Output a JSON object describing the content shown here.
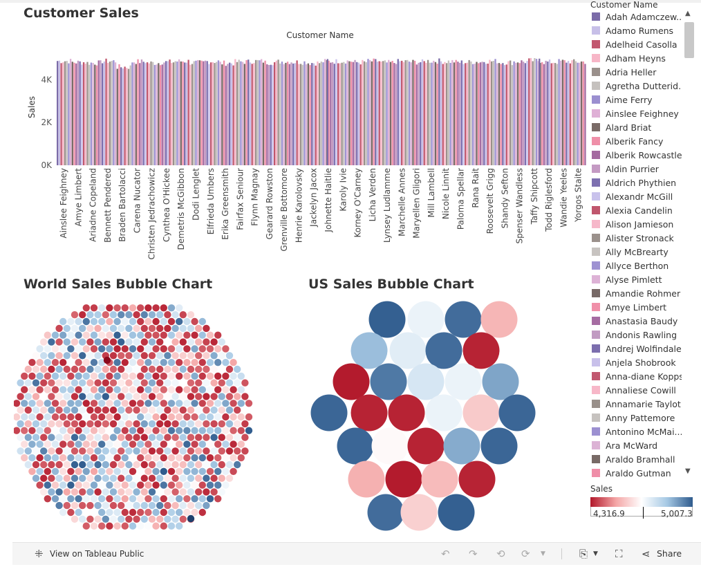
{
  "customer_sales": {
    "title": "Customer Sales",
    "header_label": "Customer Name",
    "y_axis_label": "Sales",
    "y_ticks": [
      "0K",
      "2K",
      "4K"
    ],
    "x_labels": [
      "Ainslee Feighney",
      "Amye Limbert",
      "Ariadne Copeland",
      "Bennett Pendered",
      "Braden Bartolacci",
      "Carena Nucator",
      "Christen Jedrachowicz",
      "Cynthea O'Hickee",
      "Demetris McGibbon",
      "Dodi Lenglet",
      "Elfrieda Umbers",
      "Erika Greensmith",
      "Fairfax Seniour",
      "Flynn Magnay",
      "Gearard Rowston",
      "Grenville Bottomore",
      "Henrie Karolovsky",
      "Jackelyn Jacox",
      "Johnette Haitlie",
      "Karoly Ivie",
      "Korney O'Carney",
      "Licha Verden",
      "Lynsey Ludlamme",
      "Marchelle Annes",
      "Maryellen Gligori",
      "Mill Lambell",
      "Nicole Linnit",
      "Paloma Spellar",
      "Rana Rait",
      "Roosevelt Grigg",
      "Shandy Sefton",
      "Spenser Wandless",
      "Taffy Shipcott",
      "Todd Riglesford",
      "Wandie Yeeles",
      "Yorgos Staite"
    ]
  },
  "world_chart": {
    "title": "World Sales Bubble Chart"
  },
  "us_chart": {
    "title": "US Sales Bubble Chart"
  },
  "chart_data": [
    {
      "type": "bar",
      "title": "Customer Sales",
      "xlabel": "Customer Name",
      "ylabel": "Sales",
      "ylim": [
        0,
        5500
      ],
      "note_values": "one bar per customer; all approx. 4,317–5,007",
      "categories": [
        "Ainslee Feighney",
        "Amye Limbert",
        "Ariadne Copeland",
        "Bennett Pendered",
        "Braden Bartolacci",
        "Carena Nucator",
        "Christen Jedrachowicz",
        "Cynthea O'Hickee",
        "Demetris McGibbon",
        "Dodi Lenglet",
        "Elfrieda Umbers",
        "Erika Greensmith",
        "Fairfax Seniour",
        "Flynn Magnay",
        "Gearard Rowston",
        "Grenville Bottomore",
        "Henrie Karolovsky",
        "Jackelyn Jacox",
        "Johnette Haitlie",
        "Karoly Ivie",
        "Korney O'Carney",
        "Licha Verden",
        "Lynsey Ludlamme",
        "Marchelle Annes",
        "Maryellen Gligori",
        "Mill Lambell",
        "Nicole Linnit",
        "Paloma Spellar",
        "Rana Rait",
        "Roosevelt Grigg",
        "Shandy Sefton",
        "Spenser Wandless",
        "Taffy Shipcott",
        "Todd Riglesford",
        "Wandie Yeeles",
        "Yorgos Staite"
      ],
      "values": [
        4880,
        4820,
        4790,
        4870,
        4600,
        4850,
        4790,
        4830,
        4870,
        4800,
        4860,
        4780,
        4840,
        4870,
        4810,
        4850,
        4830,
        4790,
        4860,
        4880,
        4820,
        4870,
        4800,
        4850,
        4830,
        4880,
        4860,
        4820,
        4840,
        4870,
        4810,
        4850,
        4900,
        4830,
        4860,
        4840
      ]
    },
    {
      "type": "scatter",
      "title": "World Sales Bubble Chart",
      "color_scale": [
        "#b2182b",
        "#f4a6a6",
        "#ffffff",
        "#a5c8e4",
        "#2f5b8d"
      ]
    },
    {
      "type": "scatter",
      "title": "US Sales Bubble Chart",
      "values": [
        5000,
        4700,
        4980,
        4520,
        4850,
        4720,
        4980,
        4330,
        4320,
        4960,
        4740,
        4700,
        4890,
        4990,
        4330,
        4330,
        4700,
        4560,
        4990,
        4990,
        4650,
        4330,
        4880,
        4990,
        4510,
        4320,
        4530,
        4330,
        4980,
        4570
      ]
    }
  ],
  "legend": {
    "title": "Customer Name",
    "items": [
      {
        "label": "Adah Adamczew...",
        "color": "#7b6ba8"
      },
      {
        "label": "Adamo Rumens",
        "color": "#c7bfe8"
      },
      {
        "label": "Adelheid Casolla",
        "color": "#c2576f"
      },
      {
        "label": "Adham Heyns",
        "color": "#f7b6c7"
      },
      {
        "label": "Adria Heller",
        "color": "#9a908b"
      },
      {
        "label": "Agretha Dutterid...",
        "color": "#c5c1be"
      },
      {
        "label": "Aime Ferry",
        "color": "#9b8fd0"
      },
      {
        "label": "Ainslee Feighney",
        "color": "#dfb0d6"
      },
      {
        "label": "Alard Briat",
        "color": "#7a6b67"
      },
      {
        "label": "Alberik Fancy",
        "color": "#ef8fa8"
      },
      {
        "label": "Alberik Rowcastle",
        "color": "#a46aa0"
      },
      {
        "label": "Aldin Purrier",
        "color": "#c49ac3"
      },
      {
        "label": "Aldrich Phythien",
        "color": "#7d70b0"
      },
      {
        "label": "Alexandr McGill",
        "color": "#c9c2ec"
      },
      {
        "label": "Alexia Candelin",
        "color": "#c0566d"
      },
      {
        "label": "Alison Jamieson",
        "color": "#f6b8ca"
      },
      {
        "label": "Alister Stronack",
        "color": "#9b918c"
      },
      {
        "label": "Ally McBrearty",
        "color": "#c7c3c0"
      },
      {
        "label": "Allyce Berthon",
        "color": "#9e92d2"
      },
      {
        "label": "Alyse Pimlett",
        "color": "#ddb2d6"
      },
      {
        "label": "Amandie Rohmer",
        "color": "#776966"
      },
      {
        "label": "Amye Limbert",
        "color": "#f090a9"
      },
      {
        "label": "Anastasia Baudy",
        "color": "#a66ca2"
      },
      {
        "label": "Andonis Rawling",
        "color": "#c19bc2"
      },
      {
        "label": "Andrej Wolfindale",
        "color": "#7c6eae"
      },
      {
        "label": "Anjela Shobrook",
        "color": "#c8c0ea"
      },
      {
        "label": "Anna-diane Kopps",
        "color": "#c1586f"
      },
      {
        "label": "Annaliese Cowill",
        "color": "#f7b7c8"
      },
      {
        "label": "Annamarie Taylot",
        "color": "#99908a"
      },
      {
        "label": "Anny Pattemore",
        "color": "#c6c2bf"
      },
      {
        "label": "Antonino McMai...",
        "color": "#9c90d1"
      },
      {
        "label": "Ara McWard",
        "color": "#dcb3d5"
      },
      {
        "label": "Araldo Bramhall",
        "color": "#786a66"
      },
      {
        "label": "Araldo Gutman",
        "color": "#ef8ea8"
      }
    ]
  },
  "sales_legend": {
    "title": "Sales",
    "min_label": "4,316.9",
    "max_label": "5,007.3"
  },
  "toolbar": {
    "view_label": "View on Tableau Public",
    "share_label": "Share"
  }
}
